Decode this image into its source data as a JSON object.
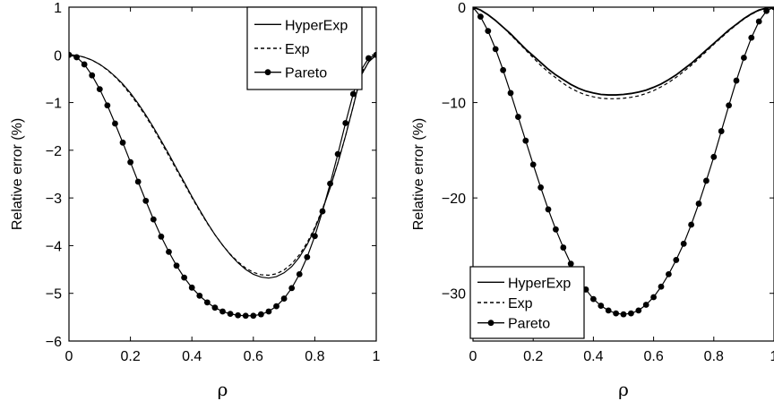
{
  "chart_data": [
    {
      "type": "line",
      "xlabel": "ρ",
      "ylabel": "Relative error (%)",
      "xlim": [
        0,
        1
      ],
      "ylim": [
        -6,
        1
      ],
      "xticks": [
        0,
        0.2,
        0.4,
        0.6,
        0.8,
        1
      ],
      "xtick_labels": [
        "0",
        "0.2",
        "0.4",
        "0.6",
        "0.8",
        "1"
      ],
      "yticks": [
        -6,
        -5,
        -4,
        -3,
        -2,
        -1,
        0,
        1
      ],
      "ytick_labels": [
        "−6",
        "−5",
        "−4",
        "−3",
        "−2",
        "−1",
        "0",
        "1"
      ],
      "legend_position": "top-right",
      "series": [
        {
          "name": "HyperExp",
          "style": "solid",
          "x": [
            0,
            0.025,
            0.05,
            0.075,
            0.1,
            0.125,
            0.15,
            0.175,
            0.2,
            0.225,
            0.25,
            0.275,
            0.3,
            0.325,
            0.35,
            0.375,
            0.4,
            0.425,
            0.45,
            0.475,
            0.5,
            0.525,
            0.55,
            0.575,
            0.6,
            0.625,
            0.65,
            0.675,
            0.7,
            0.725,
            0.75,
            0.775,
            0.8,
            0.825,
            0.85,
            0.875,
            0.9,
            0.925,
            0.95,
            0.975,
            1
          ],
          "y": [
            0,
            -0.01,
            -0.05,
            -0.11,
            -0.2,
            -0.31,
            -0.45,
            -0.61,
            -0.8,
            -1.02,
            -1.26,
            -1.52,
            -1.8,
            -2.08,
            -2.38,
            -2.67,
            -2.97,
            -3.25,
            -3.52,
            -3.77,
            -3.99,
            -4.19,
            -4.36,
            -4.5,
            -4.6,
            -4.66,
            -4.68,
            -4.65,
            -4.57,
            -4.44,
            -4.24,
            -3.98,
            -3.65,
            -3.25,
            -2.79,
            -2.27,
            -1.7,
            -1.08,
            -0.44,
            -0.15,
            0
          ]
        },
        {
          "name": "Exp",
          "style": "dashed",
          "x": [
            0,
            0.025,
            0.05,
            0.075,
            0.1,
            0.125,
            0.15,
            0.175,
            0.2,
            0.225,
            0.25,
            0.275,
            0.3,
            0.325,
            0.35,
            0.375,
            0.4,
            0.425,
            0.45,
            0.475,
            0.5,
            0.525,
            0.55,
            0.575,
            0.6,
            0.625,
            0.65,
            0.675,
            0.7,
            0.725,
            0.75,
            0.775,
            0.8,
            0.825,
            0.85,
            0.875,
            0.9,
            0.925,
            0.95,
            0.975,
            1
          ],
          "y": [
            0,
            -0.01,
            -0.05,
            -0.11,
            -0.2,
            -0.32,
            -0.46,
            -0.63,
            -0.83,
            -1.05,
            -1.29,
            -1.55,
            -1.83,
            -2.12,
            -2.41,
            -2.7,
            -2.99,
            -3.27,
            -3.53,
            -3.77,
            -3.99,
            -4.18,
            -4.34,
            -4.47,
            -4.56,
            -4.61,
            -4.62,
            -4.59,
            -4.51,
            -4.38,
            -4.19,
            -3.94,
            -3.62,
            -3.23,
            -2.78,
            -2.27,
            -1.7,
            -1.08,
            -0.44,
            -0.15,
            0
          ]
        },
        {
          "name": "Pareto",
          "style": "solid-markers",
          "x": [
            0,
            0.025,
            0.05,
            0.075,
            0.1,
            0.125,
            0.15,
            0.175,
            0.2,
            0.225,
            0.25,
            0.275,
            0.3,
            0.325,
            0.35,
            0.375,
            0.4,
            0.425,
            0.45,
            0.475,
            0.5,
            0.525,
            0.55,
            0.575,
            0.6,
            0.625,
            0.65,
            0.675,
            0.7,
            0.725,
            0.75,
            0.775,
            0.8,
            0.825,
            0.85,
            0.875,
            0.9,
            0.925,
            0.95,
            0.975,
            1
          ],
          "y": [
            0,
            -0.05,
            -0.2,
            -0.43,
            -0.72,
            -1.06,
            -1.44,
            -1.84,
            -2.25,
            -2.66,
            -3.06,
            -3.45,
            -3.81,
            -4.13,
            -4.42,
            -4.67,
            -4.88,
            -5.05,
            -5.19,
            -5.3,
            -5.38,
            -5.43,
            -5.46,
            -5.47,
            -5.47,
            -5.44,
            -5.38,
            -5.27,
            -5.11,
            -4.89,
            -4.6,
            -4.24,
            -3.8,
            -3.28,
            -2.7,
            -2.08,
            -1.43,
            -0.82,
            -0.33,
            -0.07,
            0
          ]
        }
      ]
    },
    {
      "type": "line",
      "xlabel": "ρ",
      "ylabel": "Relative error (%)",
      "xlim": [
        0,
        1
      ],
      "ylim": [
        -35,
        0
      ],
      "xticks": [
        0,
        0.2,
        0.4,
        0.6,
        0.8,
        1
      ],
      "xtick_labels": [
        "0",
        "0.2",
        "0.4",
        "0.6",
        "0.8",
        "1"
      ],
      "yticks": [
        -30,
        -20,
        -10,
        0
      ],
      "ytick_labels": [
        "−30",
        "−20",
        "−10",
        "0"
      ],
      "legend_position": "bottom-left",
      "series": [
        {
          "name": "HyperExp",
          "style": "solid",
          "x": [
            0,
            0.025,
            0.05,
            0.075,
            0.1,
            0.125,
            0.15,
            0.175,
            0.2,
            0.225,
            0.25,
            0.275,
            0.3,
            0.325,
            0.35,
            0.375,
            0.4,
            0.425,
            0.45,
            0.475,
            0.5,
            0.525,
            0.55,
            0.575,
            0.6,
            0.625,
            0.65,
            0.675,
            0.7,
            0.725,
            0.75,
            0.775,
            0.8,
            0.825,
            0.85,
            0.875,
            0.9,
            0.925,
            0.95,
            0.975,
            1
          ],
          "y": [
            0,
            -0.3,
            -0.8,
            -1.4,
            -2.1,
            -2.8,
            -3.6,
            -4.4,
            -5.1,
            -5.8,
            -6.5,
            -7.1,
            -7.6,
            -8.1,
            -8.5,
            -8.8,
            -9.0,
            -9.15,
            -9.2,
            -9.2,
            -9.15,
            -9.05,
            -8.9,
            -8.7,
            -8.4,
            -8.05,
            -7.6,
            -7.1,
            -6.5,
            -5.9,
            -5.2,
            -4.5,
            -3.8,
            -3.1,
            -2.4,
            -1.8,
            -1.2,
            -0.7,
            -0.3,
            -0.1,
            0
          ]
        },
        {
          "name": "Exp",
          "style": "dashed",
          "x": [
            0,
            0.025,
            0.05,
            0.075,
            0.1,
            0.125,
            0.15,
            0.175,
            0.2,
            0.225,
            0.25,
            0.275,
            0.3,
            0.325,
            0.35,
            0.375,
            0.4,
            0.425,
            0.45,
            0.475,
            0.5,
            0.525,
            0.55,
            0.575,
            0.6,
            0.625,
            0.65,
            0.675,
            0.7,
            0.725,
            0.75,
            0.775,
            0.8,
            0.825,
            0.85,
            0.875,
            0.9,
            0.925,
            0.95,
            0.975,
            1
          ],
          "y": [
            0,
            -0.3,
            -0.8,
            -1.4,
            -2.1,
            -2.9,
            -3.7,
            -4.5,
            -5.3,
            -6.1,
            -6.8,
            -7.4,
            -8.0,
            -8.5,
            -8.9,
            -9.2,
            -9.4,
            -9.55,
            -9.6,
            -9.6,
            -9.55,
            -9.45,
            -9.3,
            -9.05,
            -8.75,
            -8.35,
            -7.9,
            -7.35,
            -6.75,
            -6.1,
            -5.4,
            -4.65,
            -3.9,
            -3.2,
            -2.5,
            -1.85,
            -1.25,
            -0.75,
            -0.35,
            -0.1,
            0
          ]
        },
        {
          "name": "Pareto",
          "style": "solid-markers",
          "x": [
            0,
            0.025,
            0.05,
            0.075,
            0.1,
            0.125,
            0.15,
            0.175,
            0.2,
            0.225,
            0.25,
            0.275,
            0.3,
            0.325,
            0.35,
            0.375,
            0.4,
            0.425,
            0.45,
            0.475,
            0.5,
            0.525,
            0.55,
            0.575,
            0.6,
            0.625,
            0.65,
            0.675,
            0.7,
            0.725,
            0.75,
            0.775,
            0.8,
            0.825,
            0.85,
            0.875,
            0.9,
            0.925,
            0.95,
            0.975,
            1
          ],
          "y": [
            0,
            -1.0,
            -2.5,
            -4.4,
            -6.6,
            -9.0,
            -11.5,
            -14.0,
            -16.5,
            -18.9,
            -21.2,
            -23.3,
            -25.2,
            -26.9,
            -28.4,
            -29.6,
            -30.6,
            -31.3,
            -31.8,
            -32.1,
            -32.2,
            -32.1,
            -31.8,
            -31.2,
            -30.4,
            -29.3,
            -28.0,
            -26.5,
            -24.8,
            -22.8,
            -20.6,
            -18.2,
            -15.7,
            -13.0,
            -10.3,
            -7.7,
            -5.3,
            -3.2,
            -1.5,
            -0.4,
            0
          ]
        }
      ]
    }
  ]
}
